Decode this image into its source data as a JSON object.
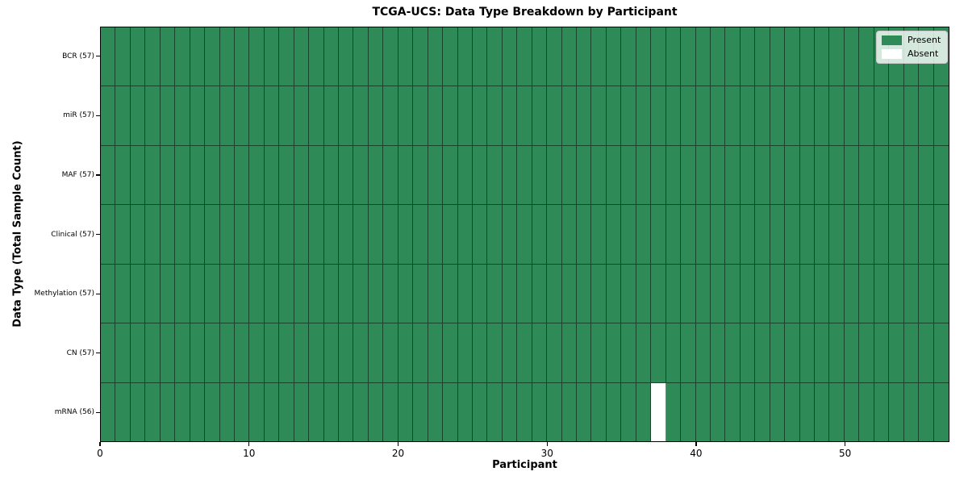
{
  "chart_data": {
    "type": "heatmap",
    "title": "TCGA-UCS: Data Type Breakdown by Participant",
    "xlabel": "Participant",
    "ylabel": "Data Type (Total Sample Count)",
    "n_participants": 57,
    "x_ticks": [
      0,
      10,
      20,
      30,
      40,
      50
    ],
    "rows": [
      {
        "data_type": "BCR",
        "label": "BCR (57)",
        "total": 57,
        "absent_participants": []
      },
      {
        "data_type": "miR",
        "label": "miR (57)",
        "total": 57,
        "absent_participants": []
      },
      {
        "data_type": "MAF",
        "label": "MAF (57)",
        "total": 57,
        "absent_participants": []
      },
      {
        "data_type": "Clinical",
        "label": "Clinical (57)",
        "total": 57,
        "absent_participants": []
      },
      {
        "data_type": "Methylation",
        "label": "Methylation (57)",
        "total": 57,
        "absent_participants": []
      },
      {
        "data_type": "CN",
        "label": "CN (57)",
        "total": 57,
        "absent_participants": []
      },
      {
        "data_type": "mRNA",
        "label": "mRNA (56)",
        "total": 56,
        "absent_participants": [
          37
        ]
      }
    ],
    "legend": [
      {
        "label": "Present",
        "color": "#2e8b57"
      },
      {
        "label": "Absent",
        "color": "#ffffff"
      }
    ],
    "colors": {
      "present": "#2e8b57",
      "absent": "#ffffff",
      "grid_line": "rgba(0,0,0,0.5)",
      "spine": "#000000"
    },
    "legend_position": "upper right",
    "grid": "cell-borders"
  }
}
